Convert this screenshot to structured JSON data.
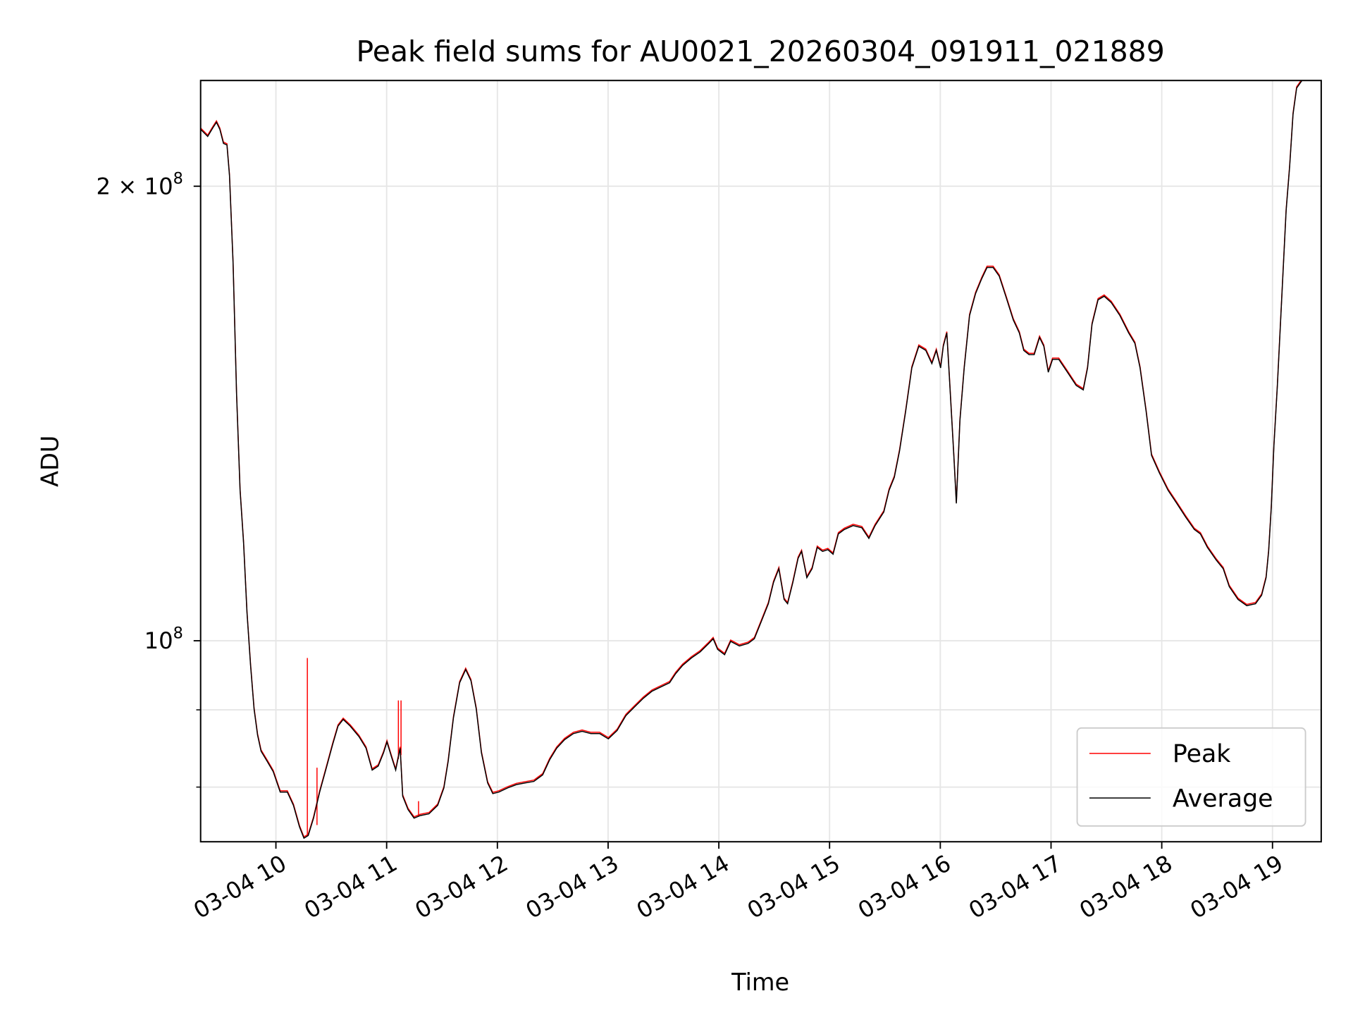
{
  "chart_data": {
    "type": "line",
    "title": "Peak field sums for AU0021_20260304_091911_021889",
    "xlabel": "Time",
    "ylabel": "ADU",
    "yscale": "log",
    "x_unit": "hours (2026-03-04)",
    "y_unit": "ADU (millions)",
    "xlim": [
      9.32,
      19.44
    ],
    "ylim": [
      73.6,
      235
    ],
    "grid": true,
    "legend_position": "lower-right",
    "x_ticks": [
      {
        "value": 10,
        "label": "03-04 10"
      },
      {
        "value": 11,
        "label": "03-04 11"
      },
      {
        "value": 12,
        "label": "03-04 12"
      },
      {
        "value": 13,
        "label": "03-04 13"
      },
      {
        "value": 14,
        "label": "03-04 14"
      },
      {
        "value": 15,
        "label": "03-04 15"
      },
      {
        "value": 16,
        "label": "03-04 16"
      },
      {
        "value": 17,
        "label": "03-04 17"
      },
      {
        "value": 18,
        "label": "03-04 18"
      },
      {
        "value": 19,
        "label": "03-04 19"
      }
    ],
    "y_ticks": [
      {
        "value": 200,
        "base": "2 × 10",
        "exp": "8"
      },
      {
        "value": 100,
        "base": "10",
        "exp": "8"
      }
    ],
    "y_minor_ticks": [
      80,
      90
    ],
    "t": [
      9.321,
      9.384,
      9.431,
      9.463,
      9.494,
      9.526,
      9.558,
      9.581,
      9.613,
      9.645,
      9.676,
      9.708,
      9.739,
      9.771,
      9.803,
      9.834,
      9.866,
      9.921,
      9.976,
      10.039,
      10.103,
      10.158,
      10.213,
      10.253,
      10.292,
      10.34,
      10.395,
      10.45,
      10.513,
      10.561,
      10.608,
      10.671,
      10.75,
      10.814,
      10.869,
      10.924,
      10.972,
      11.003,
      11.043,
      11.082,
      11.122,
      11.145,
      11.193,
      11.248,
      11.303,
      11.382,
      11.461,
      11.517,
      11.556,
      11.603,
      11.659,
      11.714,
      11.761,
      11.809,
      11.856,
      11.912,
      11.959,
      12.014,
      12.093,
      12.172,
      12.251,
      12.33,
      12.409,
      12.472,
      12.536,
      12.607,
      12.686,
      12.765,
      12.844,
      12.923,
      13.002,
      13.081,
      13.16,
      13.239,
      13.318,
      13.397,
      13.476,
      13.555,
      13.61,
      13.673,
      13.752,
      13.831,
      13.91,
      13.949,
      13.989,
      14.052,
      14.107,
      14.186,
      14.265,
      14.321,
      14.384,
      14.447,
      14.494,
      14.542,
      14.589,
      14.621,
      14.668,
      14.716,
      14.747,
      14.795,
      14.842,
      14.889,
      14.937,
      14.984,
      15.032,
      15.079,
      15.134,
      15.213,
      15.292,
      15.355,
      15.411,
      15.49,
      15.537,
      15.585,
      15.632,
      15.687,
      15.743,
      15.806,
      15.869,
      15.924,
      15.964,
      16.003,
      16.027,
      16.059,
      16.082,
      16.122,
      16.145,
      16.177,
      16.216,
      16.264,
      16.319,
      16.374,
      16.422,
      16.477,
      16.532,
      16.596,
      16.659,
      16.714,
      16.754,
      16.801,
      16.848,
      16.896,
      16.935,
      16.975,
      17.014,
      17.07,
      17.148,
      17.227,
      17.291,
      17.33,
      17.37,
      17.425,
      17.48,
      17.543,
      17.622,
      17.701,
      17.757,
      17.804,
      17.859,
      17.907,
      17.978,
      18.057,
      18.136,
      18.215,
      18.294,
      18.349,
      18.412,
      18.491,
      18.555,
      18.61,
      18.689,
      18.768,
      18.847,
      18.902,
      18.942,
      18.965,
      18.989,
      19.013,
      19.044,
      19.084,
      19.123,
      19.155,
      19.186,
      19.218,
      19.265,
      19.3,
      19.44
    ],
    "series": [
      {
        "name": "Average",
        "color": "#000000",
        "values": [
          218.1,
          215.8,
          218.7,
          220.5,
          218.1,
          213.5,
          213.0,
          203.3,
          177.9,
          145.6,
          125.8,
          116.1,
          104.4,
          96.3,
          90.1,
          86.6,
          84.5,
          83.2,
          81.9,
          79.4,
          79.4,
          77.8,
          75.3,
          74.0,
          74.3,
          76.3,
          79.4,
          82.1,
          85.4,
          87.8,
          88.7,
          87.8,
          86.4,
          84.9,
          82.1,
          82.6,
          84.3,
          85.7,
          83.8,
          82.1,
          84.9,
          78.9,
          77.3,
          76.3,
          76.6,
          76.8,
          77.8,
          79.9,
          83.2,
          88.9,
          93.8,
          95.7,
          94.1,
          90.1,
          84.3,
          80.5,
          79.2,
          79.4,
          79.9,
          80.3,
          80.5,
          80.7,
          81.5,
          83.4,
          84.9,
          86.0,
          86.8,
          87.1,
          86.8,
          86.8,
          86.1,
          87.2,
          89.2,
          90.4,
          91.6,
          92.6,
          93.2,
          93.8,
          95.1,
          96.3,
          97.4,
          98.3,
          99.6,
          100.3,
          98.7,
          97.9,
          99.9,
          99.2,
          99.6,
          100.3,
          103.0,
          105.8,
          109.3,
          111.6,
          106.5,
          105.8,
          109.3,
          113.4,
          114.6,
          110.1,
          111.6,
          115.3,
          114.6,
          114.9,
          114.1,
          117.7,
          118.5,
          119.2,
          118.8,
          116.9,
          119.2,
          121.7,
          125.8,
          128.3,
          133.6,
          141.8,
          151.6,
          156.7,
          155.7,
          152.6,
          155.7,
          151.6,
          156.7,
          159.9,
          149.6,
          132.7,
          123.3,
          139.9,
          151.6,
          164.2,
          169.8,
          173.7,
          176.7,
          176.7,
          174.4,
          168.7,
          163.1,
          159.9,
          155.7,
          154.7,
          154.7,
          158.8,
          156.7,
          150.6,
          153.6,
          153.6,
          150.6,
          147.6,
          146.6,
          151.6,
          162.0,
          168.2,
          169.1,
          167.5,
          164.2,
          159.9,
          157.4,
          151.6,
          141.8,
          132.7,
          129.2,
          125.8,
          123.3,
          120.8,
          118.5,
          117.7,
          115.3,
          113.1,
          111.6,
          108.6,
          106.5,
          105.5,
          105.8,
          107.2,
          110.1,
          114.6,
          122.5,
          134.5,
          147.6,
          168.7,
          192.7,
          206.0,
          223.2,
          232.3,
          234.9,
          240.0,
          260.0
        ]
      },
      {
        "name": "Peak",
        "color": "#ff0000",
        "values_note_same_as_average": true,
        "spikes": [
          {
            "t": 10.284,
            "from": 74.3,
            "to": 97.4
          },
          {
            "t": 10.371,
            "from": 75.5,
            "to": 82.4
          },
          {
            "t": 11.106,
            "from": 83.5,
            "to": 91.3
          },
          {
            "t": 11.13,
            "from": 84.0,
            "to": 91.3
          },
          {
            "t": 11.288,
            "from": 76.5,
            "to": 78.3
          }
        ]
      }
    ]
  }
}
